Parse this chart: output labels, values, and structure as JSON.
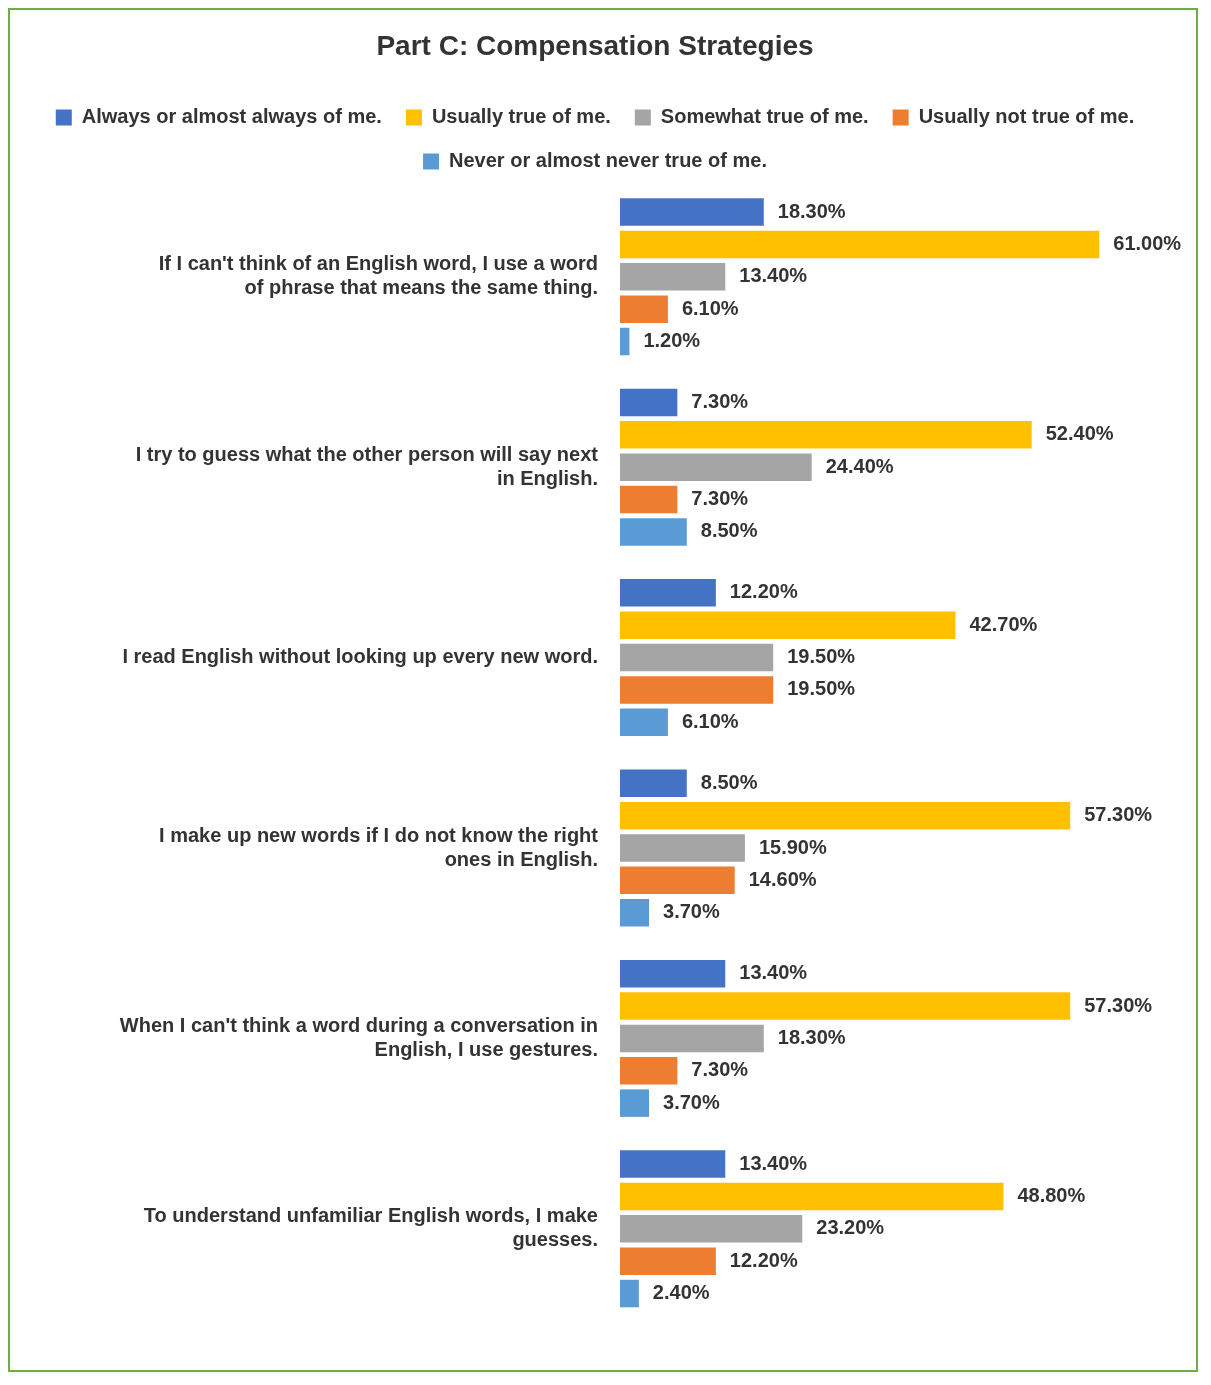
{
  "chart_data": {
    "type": "bar",
    "orientation": "horizontal",
    "title": "Part C: Compensation Strategies",
    "categories": [
      "If I can't think of an English word, I use a word of phrase that means the same thing.",
      "I try to guess what the other person will say next in English.",
      "I read English without looking up every new word.",
      "I make up new words if I do not know the right ones in English.",
      "When I can't think a word during a conversation in English, I use gestures.",
      "To understand unfamiliar English words, I make guesses."
    ],
    "series": [
      {
        "name": "Always or almost always of me.",
        "color": "#4472c4",
        "values": [
          18.3,
          7.3,
          12.2,
          8.5,
          13.4,
          13.4
        ],
        "value_labels": [
          "18.30%",
          "7.30%",
          "12.20%",
          "8.50%",
          "13.40%",
          "13.40%"
        ]
      },
      {
        "name": "Usually true of me.",
        "color": "#ffc000",
        "values": [
          61.0,
          52.4,
          42.7,
          57.3,
          57.3,
          48.8
        ],
        "value_labels": [
          "61.00%",
          "52.40%",
          "42.70%",
          "57.30%",
          "57.30%",
          "48.80%"
        ]
      },
      {
        "name": "Somewhat true of me.",
        "color": "#a5a5a5",
        "values": [
          13.4,
          24.4,
          19.5,
          15.9,
          18.3,
          23.2
        ],
        "value_labels": [
          "13.40%",
          "24.40%",
          "19.50%",
          "15.90%",
          "18.30%",
          "23.20%"
        ]
      },
      {
        "name": "Usually not true of me.",
        "color": "#ed7d31",
        "values": [
          6.1,
          7.3,
          19.5,
          14.6,
          7.3,
          12.2
        ],
        "value_labels": [
          "6.10%",
          "7.30%",
          "19.50%",
          "14.60%",
          "7.30%",
          "12.20%"
        ]
      },
      {
        "name": "Never or almost never true of me.",
        "color": "#5b9bd5",
        "values": [
          1.2,
          8.5,
          6.1,
          3.7,
          3.7,
          2.4
        ],
        "value_labels": [
          "1.20%",
          "8.50%",
          "6.10%",
          "3.70%",
          "3.70%",
          "2.40%"
        ]
      }
    ],
    "legend": "top",
    "grid": false,
    "tick_labels": "y"
  }
}
